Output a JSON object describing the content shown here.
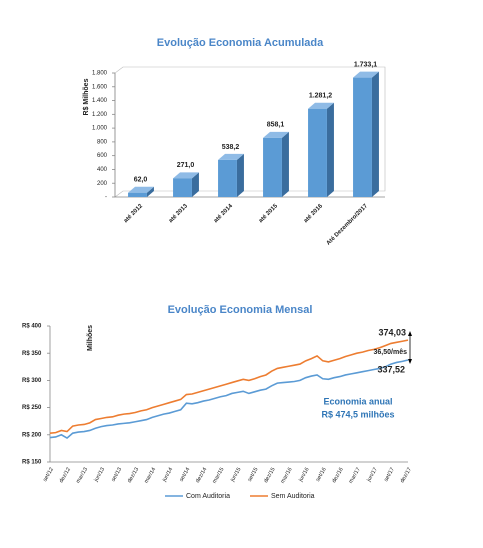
{
  "chart_data": [
    {
      "type": "bar",
      "title": "Evolução Economia Acumulada",
      "ylabel": "R$ Milhões",
      "categories": [
        "até 2012",
        "até 2013",
        "até 2014",
        "até 2015",
        "até 2016",
        "Até Dezembro/2017"
      ],
      "values": [
        62.0,
        271.0,
        538.2,
        858.1,
        1281.2,
        1733.1
      ],
      "value_labels": [
        "62,0",
        "271,0",
        "538,2",
        "858,1",
        "1.281,2",
        "1.733,1"
      ],
      "color": "#5b9bd5",
      "ylim": [
        0,
        1800
      ],
      "yticks": [
        {
          "value": 0,
          "label": "-"
        },
        200,
        400,
        600,
        800,
        {
          "value": 1000,
          "label": "1.000"
        },
        {
          "value": 1200,
          "label": "1.200"
        },
        {
          "value": 1400,
          "label": "1.400"
        },
        {
          "value": 1600,
          "label": "1.600"
        },
        {
          "value": 1800,
          "label": "1.800"
        }
      ],
      "grid": false
    },
    {
      "type": "line",
      "title": "Evolução Economia Mensal",
      "ylabel": "Milhões",
      "categories": [
        "set/12",
        null,
        null,
        "dez/12",
        null,
        null,
        "mar/13",
        null,
        null,
        "jun/13",
        null,
        null,
        "set/13",
        null,
        null,
        "dez/13",
        null,
        null,
        "mar/14",
        null,
        null,
        "jun/14",
        null,
        null,
        "set/14",
        null,
        null,
        "dez/14",
        null,
        null,
        "mar/15",
        null,
        null,
        "jun/15",
        null,
        null,
        "set/15",
        null,
        null,
        "dez/15",
        null,
        null,
        "mar/16",
        null,
        null,
        "jun/16",
        null,
        null,
        "set/16",
        null,
        null,
        "dez/16",
        null,
        null,
        "mar/17",
        null,
        null,
        "jun/17",
        null,
        null,
        "set/17",
        null,
        null,
        "dez/17"
      ],
      "series": [
        {
          "name": "Com Auditoria",
          "color": "#5b9bd5",
          "values": [
            195,
            196,
            200,
            194,
            203,
            205,
            206,
            208,
            212,
            215,
            217,
            218,
            220,
            221,
            222,
            224,
            226,
            228,
            232,
            235,
            238,
            240,
            243,
            246,
            258,
            257,
            259,
            262,
            264,
            267,
            270,
            272,
            276,
            278,
            280,
            276,
            279,
            282,
            284,
            290,
            295,
            296,
            297,
            298,
            300,
            305,
            308,
            310,
            303,
            302,
            305,
            307,
            310,
            312,
            314,
            316,
            318,
            320,
            322,
            325,
            330,
            333,
            335,
            337.52
          ]
        },
        {
          "name": "Sem Auditoria",
          "color": "#ed7d31",
          "values": [
            203,
            204,
            208,
            206,
            216,
            218,
            219,
            222,
            228,
            230,
            232,
            233,
            236,
            238,
            239,
            241,
            244,
            246,
            250,
            253,
            256,
            259,
            262,
            265,
            274,
            275,
            278,
            281,
            284,
            287,
            290,
            293,
            296,
            299,
            302,
            300,
            303,
            307,
            310,
            317,
            322,
            324,
            326,
            328,
            330,
            336,
            340,
            345,
            336,
            334,
            337,
            340,
            344,
            347,
            350,
            352,
            355,
            357,
            360,
            364,
            368,
            370,
            372,
            374.03
          ]
        }
      ],
      "ylim": [
        150,
        400
      ],
      "yticks": [
        {
          "value": 150,
          "label": "R$ 150"
        },
        {
          "value": 200,
          "label": "R$ 200"
        },
        {
          "value": 250,
          "label": "R$ 250"
        },
        {
          "value": 300,
          "label": "R$ 300"
        },
        {
          "value": 350,
          "label": "R$ 350"
        },
        {
          "value": 400,
          "label": "R$ 400"
        }
      ],
      "annotations": [
        "374,03",
        "36,50/mês",
        "337,52",
        "Economia anual",
        "R$ 474,5 milhões"
      ],
      "grid": false
    }
  ]
}
